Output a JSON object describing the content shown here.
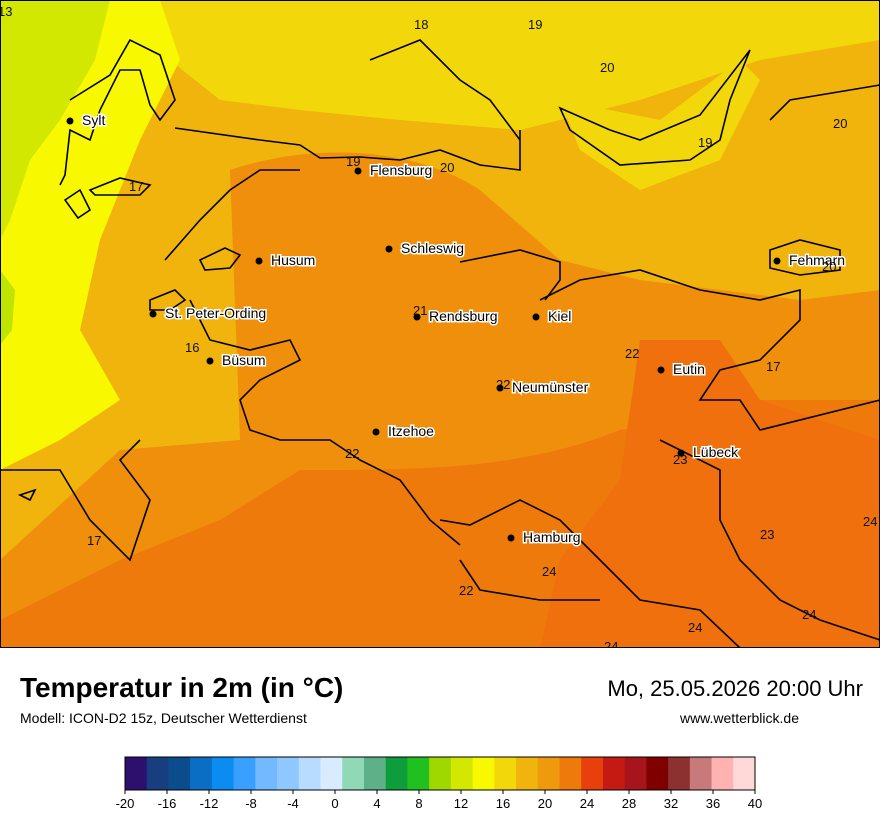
{
  "title": "Temperatur in 2m (in °C)",
  "model": "Modell: ICON-D2 15z, Deutscher Wetterdienst",
  "datetime": "Mo, 25.05.2026 20:00 Uhr",
  "website": "www.wetterblick.de",
  "cities": [
    {
      "name": "Sylt"
    },
    {
      "name": "Flensburg"
    },
    {
      "name": "Schleswig"
    },
    {
      "name": "Husum"
    },
    {
      "name": "St. Peter-Ording"
    },
    {
      "name": "Rendsburg"
    },
    {
      "name": "Kiel"
    },
    {
      "name": "Büsum"
    },
    {
      "name": "Eutin"
    },
    {
      "name": "Neumünster"
    },
    {
      "name": "Itzehoe"
    },
    {
      "name": "Lübeck"
    },
    {
      "name": "Hamburg"
    },
    {
      "name": "Fehmarn"
    }
  ],
  "isolines": [
    "13",
    "18",
    "19",
    "20",
    "20",
    "19",
    "17",
    "19",
    "20",
    "20",
    "16",
    "21",
    "22",
    "22",
    "17",
    "22",
    "23",
    "22",
    "17",
    "23",
    "24",
    "24",
    "22",
    "24",
    "24",
    "24"
  ],
  "legend": {
    "ticks": [
      "-20",
      "-16",
      "-12",
      "-8",
      "-4",
      "0",
      "4",
      "8",
      "12",
      "16",
      "20",
      "24",
      "28",
      "32",
      "36",
      "40"
    ],
    "colors": [
      "#2d0f6e",
      "#173f80",
      "#0b4d8c",
      "#0a6fc4",
      "#0a8cf0",
      "#39a0ff",
      "#72b9ff",
      "#8fc8ff",
      "#b7dcff",
      "#d8ebff",
      "#90d9b6",
      "#5eb088",
      "#0d9d3c",
      "#1fc01f",
      "#9fd800",
      "#d3e800",
      "#f8f800",
      "#f2d80a",
      "#f0b40c",
      "#ef9a0c",
      "#ef7a0c",
      "#e8400c",
      "#c41a12",
      "#a8141b",
      "#800000",
      "#8c3030",
      "#c87a7a",
      "#ffb2b2",
      "#ffd8d8"
    ]
  }
}
